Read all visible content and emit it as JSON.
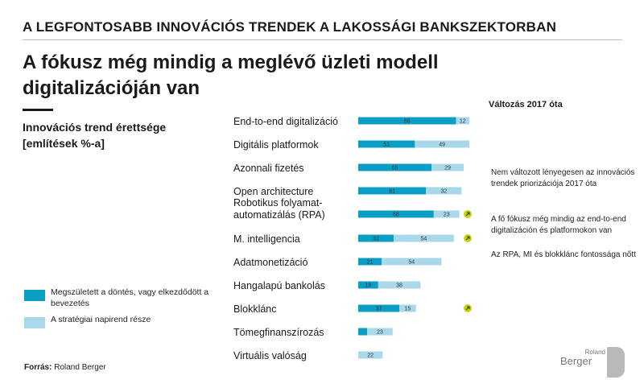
{
  "main_title": "A LEGFONTOSABB INNOVÁCIÓS TRENDEK A LAKOSSÁGI BANKSZEKTORBAN",
  "headline": "A fókusz még mindig a meglévő üzleti modell digitalizációján van",
  "subtitle_line1": "Innovációs trend érettsége",
  "subtitle_line2": "[említések %-a]",
  "change_header": "Változás 2017 óta",
  "notes": [
    "Nem változott lényegesen az innovációs trendek priorizációja 2017 óta",
    "A fő fókusz még mindig az end-to-end digitalizáción és platformokon van",
    "Az RPA, MI és blokklánc fontossága nőtt"
  ],
  "legend": [
    {
      "label": "Megszületett a döntés, vagy elkezdődött a bevezetés",
      "color": "#0a9ec4"
    },
    {
      "label": "A stratégiai napirend része",
      "color": "#a8d8ea"
    }
  ],
  "source_label": "Forrás:",
  "source_value": "Roland Berger",
  "logo": {
    "small": "Roland",
    "big": "Berger"
  },
  "colors": {
    "decided": "#0a9ec4",
    "agenda": "#a8d8ea",
    "arrow": "#c8d400"
  },
  "chart_data": {
    "type": "bar",
    "orientation": "horizontal",
    "stacked": true,
    "categories": [
      "End-to-end digitalizáció",
      "Digitális platformok",
      "Azonnali fizetés",
      "Open architecture",
      "Robotikus folyamat-|automatizálás (RPA)",
      "M. intelligencia",
      "Adatmonetizáció",
      "Hangalapú bankolás",
      "Blokklánc",
      "Tömegfinanszírozás",
      "Virtuális valóság"
    ],
    "series": [
      {
        "name": "Megszületett a döntés, vagy elkezdődött a bevezetés",
        "values": [
          88,
          51,
          66,
          61,
          68,
          32,
          21,
          18,
          37,
          8,
          0
        ]
      },
      {
        "name": "A stratégiai napirend része",
        "values": [
          12,
          49,
          29,
          32,
          23,
          54,
          54,
          38,
          15,
          23,
          22
        ]
      }
    ],
    "increased": [
      false,
      false,
      false,
      false,
      true,
      true,
      false,
      false,
      true,
      false,
      false
    ],
    "xlim": [
      0,
      100
    ]
  }
}
